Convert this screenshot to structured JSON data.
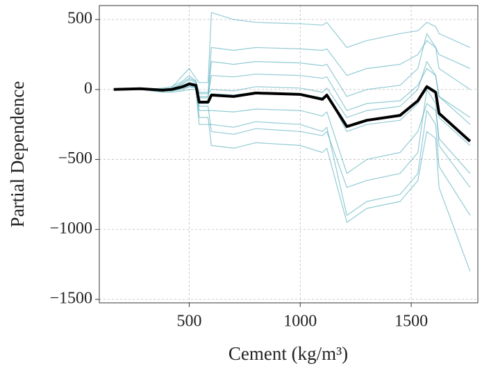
{
  "chart_data": {
    "type": "line",
    "x_label": "Cement (kg/m³)",
    "y_label": "Partial Dependence",
    "x": [
      160,
      280,
      330,
      380,
      420,
      470,
      500,
      530,
      545,
      585,
      600,
      700,
      800,
      1000,
      1100,
      1120,
      1210,
      1300,
      1450,
      1530,
      1570,
      1610,
      1625,
      1765
    ],
    "series": [
      {
        "color": "#4aa8b8",
        "values": [
          0,
          0,
          0,
          5,
          10,
          100,
          150,
          80,
          50,
          50,
          550,
          500,
          480,
          470,
          460,
          480,
          300,
          350,
          400,
          420,
          480,
          450,
          400,
          300
        ]
      },
      {
        "color": "#4aa8b8",
        "values": [
          0,
          5,
          0,
          0,
          5,
          50,
          80,
          60,
          -20,
          -20,
          300,
          280,
          300,
          290,
          280,
          290,
          100,
          150,
          180,
          250,
          350,
          300,
          250,
          150
        ]
      },
      {
        "color": "#4aa8b8",
        "values": [
          0,
          0,
          -5,
          -10,
          0,
          30,
          50,
          40,
          -50,
          -50,
          100,
          90,
          110,
          100,
          80,
          90,
          -150,
          -100,
          -80,
          30,
          150,
          100,
          -50,
          -250
        ]
      },
      {
        "color": "#4aa8b8",
        "values": [
          0,
          5,
          5,
          0,
          0,
          20,
          40,
          30,
          -100,
          -100,
          -30,
          -40,
          -20,
          -30,
          -60,
          -30,
          -300,
          -250,
          -220,
          -100,
          30,
          -10,
          -200,
          -400
        ]
      },
      {
        "color": "#4aa8b8",
        "values": [
          0,
          0,
          0,
          -5,
          -10,
          10,
          20,
          20,
          -150,
          -150,
          -150,
          -160,
          -140,
          -150,
          -190,
          -160,
          -600,
          -500,
          -450,
          -300,
          -100,
          -150,
          -350,
          -600
        ]
      },
      {
        "color": "#4aa8b8",
        "values": [
          0,
          0,
          -10,
          -20,
          -20,
          -10,
          0,
          0,
          -250,
          -250,
          -250,
          -270,
          -230,
          -250,
          -300,
          -270,
          -900,
          -800,
          -750,
          -600,
          -150,
          -250,
          -550,
          -900
        ]
      },
      {
        "color": "#4aa8b8",
        "values": [
          0,
          5,
          5,
          10,
          20,
          60,
          100,
          60,
          -30,
          -30,
          0,
          -10,
          20,
          10,
          -20,
          10,
          -200,
          -150,
          -120,
          0,
          200,
          100,
          -50,
          -200
        ]
      },
      {
        "color": "#4aa8b8",
        "values": [
          0,
          0,
          0,
          0,
          0,
          10,
          30,
          20,
          -120,
          -120,
          -300,
          -320,
          -280,
          -300,
          -330,
          -300,
          -700,
          -650,
          -600,
          -450,
          0,
          -100,
          -400,
          -700
        ]
      },
      {
        "color": "#4aa8b8",
        "values": [
          0,
          0,
          0,
          5,
          5,
          40,
          70,
          50,
          -60,
          -60,
          200,
          180,
          200,
          190,
          170,
          180,
          -50,
          0,
          30,
          150,
          400,
          300,
          150,
          0
        ]
      },
      {
        "color": "#4aa8b8",
        "values": [
          0,
          0,
          -5,
          -10,
          -10,
          0,
          20,
          10,
          -200,
          -200,
          -400,
          -420,
          -380,
          -400,
          -450,
          -420,
          -950,
          -850,
          -800,
          -650,
          -300,
          -350,
          -700,
          -1300
        ]
      },
      {
        "color": "#000000",
        "values": [
          0,
          5,
          0,
          -5,
          0,
          20,
          40,
          30,
          -90,
          -90,
          -40,
          -50,
          -25,
          -35,
          -70,
          -40,
          -265,
          -220,
          -185,
          -80,
          20,
          -20,
          -170,
          -370
        ]
      }
    ],
    "xlim": [
      95,
      1800
    ],
    "ylim": [
      -1525,
      600
    ],
    "xticks": [
      500,
      1000,
      1500
    ],
    "yticks": [
      {
        "value": -1500,
        "label": "−1500"
      },
      {
        "value": -1000,
        "label": "−1000"
      },
      {
        "value": -500,
        "label": "−500"
      },
      0,
      500
    ],
    "grid": true
  }
}
